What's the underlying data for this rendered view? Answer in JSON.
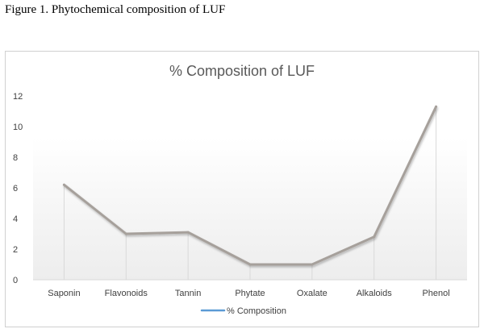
{
  "figure": {
    "caption": "Figure 1. Phytochemical composition of LUF"
  },
  "chart_data": {
    "type": "line",
    "title": "% Composition of LUF",
    "categories": [
      "Saponin",
      "Flavonoids",
      "Tannin",
      "Phytate",
      "Oxalate",
      "Alkaloids",
      "Phenol"
    ],
    "series": [
      {
        "name": "% Composition",
        "values": [
          6.2,
          3.0,
          3.1,
          1.0,
          1.0,
          2.8,
          11.3
        ],
        "color": "#a6a09b",
        "legend_color": "#5b9bd5"
      }
    ],
    "yticks": [
      0,
      2,
      4,
      6,
      8,
      10,
      12
    ],
    "ylim": [
      0,
      12
    ],
    "xlabel": "",
    "ylabel": "",
    "grid": "vertical drop lines",
    "legend_position": "bottom"
  }
}
